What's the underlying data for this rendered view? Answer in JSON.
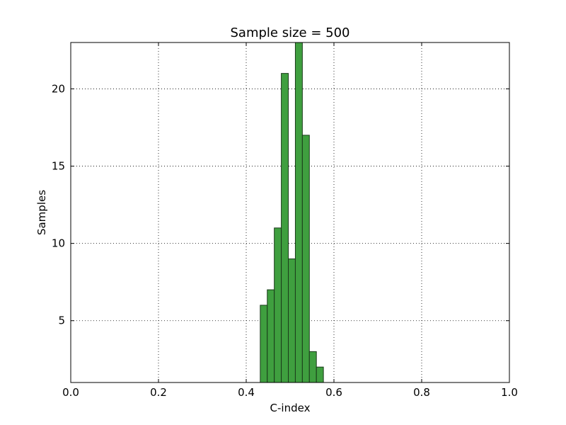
{
  "chart_data": {
    "type": "bar",
    "title": "Sample size = 500",
    "xlabel": "C-index",
    "ylabel": "Samples",
    "xlim": [
      0.0,
      1.0
    ],
    "ylim": [
      1,
      23
    ],
    "grid": true,
    "bar_color": "#3f9f3f",
    "bar_edge_color": "#1a3a1a",
    "x_ticks": [
      0.0,
      0.2,
      0.4,
      0.6,
      0.8,
      1.0
    ],
    "x_tick_labels": [
      "0.0",
      "0.2",
      "0.4",
      "0.6",
      "0.8",
      "1.0"
    ],
    "y_ticks": [
      5,
      10,
      15,
      20
    ],
    "y_tick_labels": [
      "5",
      "10",
      "15",
      "20"
    ],
    "bins": [
      {
        "start": 0.416,
        "end": 0.432,
        "value": 1
      },
      {
        "start": 0.432,
        "end": 0.448,
        "value": 6
      },
      {
        "start": 0.448,
        "end": 0.464,
        "value": 7
      },
      {
        "start": 0.464,
        "end": 0.48,
        "value": 11
      },
      {
        "start": 0.48,
        "end": 0.496,
        "value": 21
      },
      {
        "start": 0.496,
        "end": 0.512,
        "value": 9
      },
      {
        "start": 0.512,
        "end": 0.528,
        "value": 23
      },
      {
        "start": 0.528,
        "end": 0.544,
        "value": 17
      },
      {
        "start": 0.544,
        "end": 0.56,
        "value": 3
      },
      {
        "start": 0.56,
        "end": 0.576,
        "value": 2
      }
    ]
  }
}
